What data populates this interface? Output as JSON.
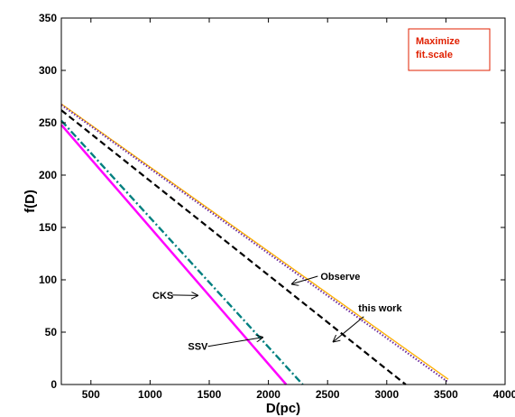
{
  "chart_data": {
    "type": "line",
    "xlabel": "D(pc)",
    "ylabel": "f(D)",
    "xlim": [
      250,
      4000
    ],
    "ylim": [
      0,
      350
    ],
    "xticks": [
      500,
      1000,
      1500,
      2000,
      2500,
      3000,
      3500,
      4000
    ],
    "yticks": [
      0,
      50,
      100,
      150,
      200,
      250,
      300,
      350
    ],
    "grid": false,
    "legend": "none",
    "note_box": {
      "lines": [
        "Maximize",
        "fit.scale"
      ],
      "text_color": "#e02000",
      "border_color": "#e02000",
      "placement": "top-right"
    },
    "series": [
      {
        "name": "Observe",
        "x": [
          250,
          3520
        ],
        "y": [
          268,
          5
        ],
        "color": "#ffb000",
        "style": "solid"
      },
      {
        "name": "",
        "x": [
          250,
          3510
        ],
        "y": [
          267,
          3
        ],
        "color": "#7030a0",
        "style": "dotted"
      },
      {
        "name": "this work",
        "x": [
          250,
          3160
        ],
        "y": [
          262,
          0
        ],
        "color": "#000000",
        "style": "dashed"
      },
      {
        "name": "CKS",
        "x": [
          250,
          2290
        ],
        "y": [
          252,
          0
        ],
        "color": "#008080",
        "style": "dashdot"
      },
      {
        "name": "SSV",
        "x": [
          250,
          2150
        ],
        "y": [
          248,
          0
        ],
        "color": "#ff00ff",
        "style": "solid"
      }
    ],
    "annotations": [
      {
        "text": "Observe",
        "text_at": [
          2440,
          100
        ],
        "arrow_to": [
          2200,
          96
        ]
      },
      {
        "text": "this work",
        "text_at": [
          2760,
          70
        ],
        "arrow_to": [
          2550,
          41
        ]
      },
      {
        "text": "CKS",
        "text_at": [
          1020,
          82
        ],
        "arrow_to": [
          1400,
          85
        ]
      },
      {
        "text": "SSV",
        "text_at": [
          1320,
          33
        ],
        "arrow_to": [
          1950,
          45
        ]
      }
    ]
  }
}
